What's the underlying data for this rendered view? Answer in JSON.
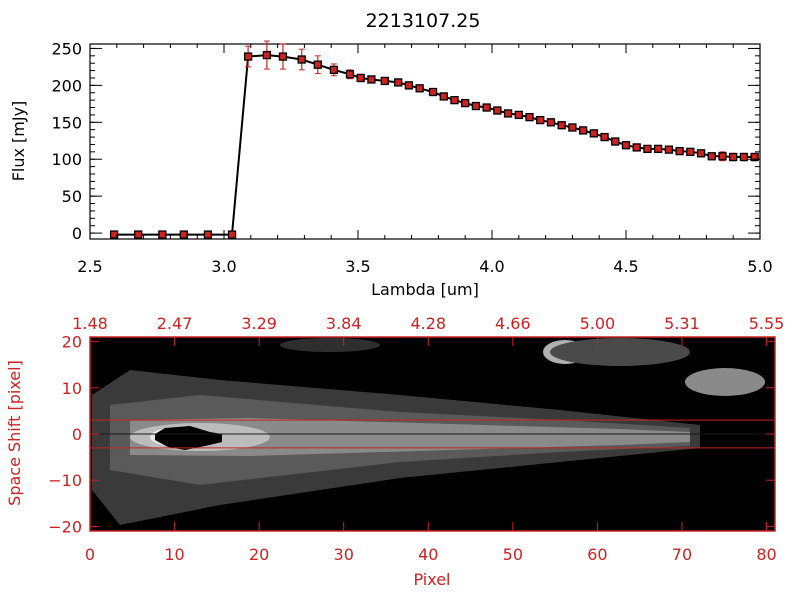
{
  "title": "2213107.25",
  "colors": {
    "axis": "#000000",
    "accent": "#cc2222",
    "marker": "#cc2222",
    "line": "#000000",
    "image_bg": "#000000"
  },
  "chart_data": [
    {
      "type": "line",
      "title": "2213107.25",
      "xlabel": "Lambda [um]",
      "ylabel": "Flux [mJy]",
      "xlim": [
        2.5,
        5.0
      ],
      "ylim": [
        -8,
        256
      ],
      "xticks": [
        "2.5",
        "3.0",
        "3.5",
        "4.0",
        "4.5",
        "5.0"
      ],
      "xtick_values": [
        2.5,
        3.0,
        3.5,
        4.0,
        4.5,
        5.0
      ],
      "yticks": [
        "0",
        "50",
        "100",
        "150",
        "200",
        "250"
      ],
      "ytick_values": [
        0,
        50,
        100,
        150,
        200,
        250
      ],
      "grid": false,
      "series": [
        {
          "x": [
            2.59,
            2.68,
            2.77,
            2.85,
            2.94,
            3.03,
            3.09,
            3.16,
            3.22,
            3.29,
            3.35,
            3.41,
            3.47,
            3.51,
            3.55,
            3.6,
            3.65,
            3.69,
            3.73,
            3.78,
            3.82,
            3.86,
            3.9,
            3.94,
            3.98,
            4.02,
            4.06,
            4.1,
            4.14,
            4.18,
            4.22,
            4.26,
            4.3,
            4.34,
            4.38,
            4.42,
            4.46,
            4.5,
            4.54,
            4.58,
            4.62,
            4.66,
            4.7,
            4.74,
            4.78,
            4.82,
            4.86,
            4.9,
            4.94,
            4.98
          ],
          "y": [
            -2,
            -2,
            -2,
            -2,
            -2,
            -2,
            239,
            241,
            239,
            235,
            228,
            221,
            215,
            210,
            208,
            206,
            204,
            200,
            196,
            191,
            185,
            180,
            176,
            172,
            170,
            166,
            162,
            160,
            157,
            153,
            150,
            146,
            143,
            139,
            135,
            130,
            124,
            119,
            116,
            114,
            114,
            113,
            111,
            110,
            108,
            104,
            104,
            103,
            103,
            103
          ],
          "yerr": [
            0,
            0,
            0,
            0,
            0,
            0,
            14,
            19,
            17,
            14,
            12,
            8,
            6,
            5,
            4,
            4,
            4,
            4,
            4,
            4,
            4,
            4,
            4,
            4,
            4,
            4,
            4,
            4,
            4,
            4,
            4,
            4,
            4,
            4,
            4,
            4,
            4,
            4,
            4,
            4,
            4,
            4,
            4,
            4,
            4,
            4,
            6,
            5,
            5,
            5
          ]
        }
      ]
    },
    {
      "type": "heatmap",
      "xlabel": "Pixel",
      "ylabel": "Space Shift [pixel]",
      "xlim": [
        0,
        81
      ],
      "ylim": [
        -21,
        21
      ],
      "xticks": [
        "0",
        "10",
        "20",
        "30",
        "40",
        "50",
        "60",
        "70",
        "80"
      ],
      "xtick_values": [
        0,
        10,
        20,
        30,
        40,
        50,
        60,
        70,
        80
      ],
      "top_ticks": [
        "1.48",
        "2.47",
        "3.29",
        "3.84",
        "4.28",
        "4.66",
        "5.00",
        "5.31",
        "5.55"
      ],
      "top_tick_values": [
        0,
        10,
        20,
        30,
        40,
        50,
        60,
        70,
        80
      ],
      "yticks": [
        "20",
        "10",
        "0",
        "−10",
        "−20"
      ],
      "ytick_values": [
        20,
        10,
        0,
        -10,
        -20
      ],
      "lines": [
        3,
        0,
        -3
      ]
    }
  ]
}
